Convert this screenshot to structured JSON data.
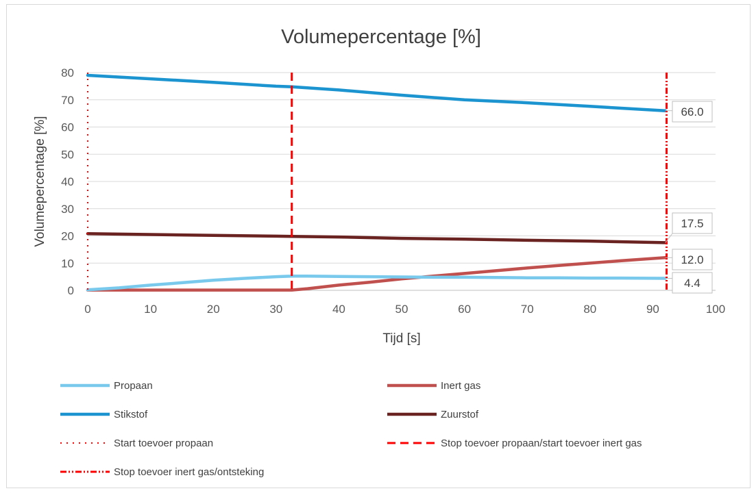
{
  "chart_data": {
    "type": "line",
    "title": "Volumepercentage [%]",
    "xlabel": "Tijd [s]",
    "ylabel": "Volumepercentage [%]",
    "xlim": [
      0,
      100
    ],
    "ylim": [
      0,
      80
    ],
    "x_ticks": [
      "0",
      "10",
      "20",
      "30",
      "40",
      "50",
      "60",
      "70",
      "80",
      "90",
      "100"
    ],
    "y_ticks": [
      "0",
      "10",
      "20",
      "30",
      "40",
      "50",
      "60",
      "70",
      "80"
    ],
    "grid": "horizontal",
    "legend_position": "bottom",
    "series": [
      {
        "name": "Propaan",
        "color": "#79c9ec",
        "style": "solid",
        "x": [
          0,
          5,
          10,
          15,
          20,
          25,
          30,
          32.5,
          35,
          40,
          45,
          50,
          55,
          60,
          65,
          70,
          75,
          80,
          85,
          92
        ],
        "y": [
          0.2,
          0.9,
          1.9,
          2.8,
          3.7,
          4.4,
          5.0,
          5.2,
          5.2,
          5.1,
          5.0,
          4.9,
          4.8,
          4.8,
          4.7,
          4.6,
          4.6,
          4.5,
          4.5,
          4.4
        ]
      },
      {
        "name": "Inert gas",
        "color": "#c0504d",
        "style": "solid",
        "x": [
          0,
          10,
          20,
          30,
          32.5,
          35,
          40,
          45,
          50,
          55,
          60,
          65,
          70,
          75,
          80,
          85,
          92
        ],
        "y": [
          0.1,
          0.1,
          0.1,
          0.1,
          0.1,
          0.6,
          1.9,
          3.0,
          4.2,
          5.2,
          6.2,
          7.2,
          8.2,
          9.1,
          10.0,
          10.9,
          12.0
        ]
      },
      {
        "name": "Stikstof",
        "color": "#1b94cf",
        "style": "solid",
        "x": [
          0,
          10,
          20,
          30,
          32.5,
          40,
          50,
          60,
          70,
          80,
          92
        ],
        "y": [
          79.0,
          77.7,
          76.4,
          75.0,
          74.8,
          73.6,
          71.7,
          70.0,
          68.9,
          67.6,
          66.0
        ]
      },
      {
        "name": "Zuurstof",
        "color": "#6b2321",
        "style": "solid",
        "x": [
          0,
          10,
          20,
          30,
          32.5,
          40,
          50,
          60,
          70,
          80,
          92
        ],
        "y": [
          20.8,
          20.5,
          20.2,
          19.9,
          19.8,
          19.6,
          19.1,
          18.8,
          18.4,
          18.1,
          17.5
        ]
      }
    ],
    "markers": [
      {
        "name": "Start toevoer propaan",
        "x": 0,
        "style": "dotted",
        "color": "#ff0000"
      },
      {
        "name": "Stop toevoer propaan/start toevoer inert gas",
        "x": 32.5,
        "style": "dashed",
        "color": "#ff0000"
      },
      {
        "name": "Stop toevoer inert gas/ontsteking",
        "x": 92.2,
        "style": "dashdotdot",
        "color": "#ff0000"
      }
    ],
    "data_labels": [
      {
        "series": "Stikstof",
        "x": 92,
        "y": 66.0,
        "text": "66.0"
      },
      {
        "series": "Zuurstof",
        "x": 92,
        "y": 17.5,
        "text": "17.5"
      },
      {
        "series": "Inert gas",
        "x": 92,
        "y": 12.0,
        "text": "12.0"
      },
      {
        "series": "Propaan",
        "x": 92,
        "y": 4.4,
        "text": "4.4"
      }
    ],
    "legend": [
      {
        "label": "Propaan",
        "color": "#79c9ec",
        "style": "solid"
      },
      {
        "label": "Inert gas",
        "color": "#c0504d",
        "style": "solid"
      },
      {
        "label": "Stikstof",
        "color": "#1b94cf",
        "style": "solid"
      },
      {
        "label": "Zuurstof",
        "color": "#6b2321",
        "style": "solid"
      },
      {
        "label": "Start toevoer propaan",
        "color": "#ff0000",
        "style": "dotted"
      },
      {
        "label": "Stop toevoer propaan/start toevoer inert gas",
        "color": "#ff0000",
        "style": "dashed"
      },
      {
        "label": "Stop toevoer inert gas/ontsteking",
        "color": "#ff0000",
        "style": "dashdotdot"
      }
    ]
  }
}
